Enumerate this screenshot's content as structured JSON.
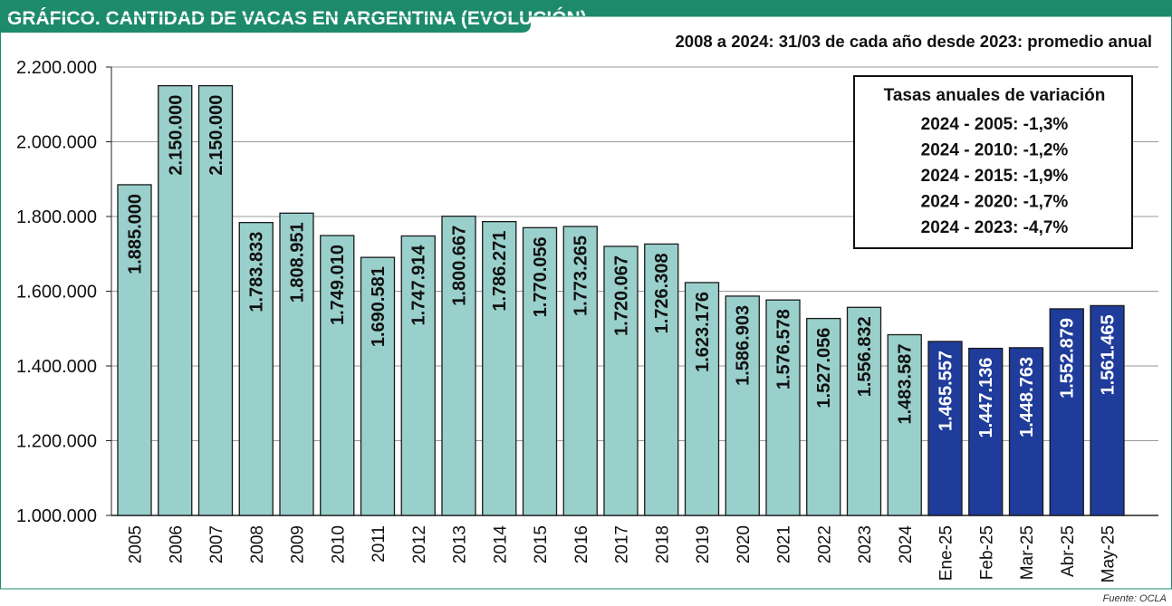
{
  "colors": {
    "header": "#1c8a6b",
    "annual_bar": "#9ad0cc",
    "monthly_bar": "#1f3c9b",
    "grid": "#9a9a9a",
    "border": "#333333"
  },
  "chart_data": {
    "type": "bar",
    "title": "GRÁFICO. CANTIDAD DE VACAS EN ARGENTINA (EVOLUCIÓN)",
    "subtitle": "2008 a 2024: 31/03 de cada año desde 2023: promedio anual",
    "categories": [
      "2005",
      "2006",
      "2007",
      "2008",
      "2009",
      "2010",
      "2011",
      "2012",
      "2013",
      "2014",
      "2015",
      "2016",
      "2017",
      "2018",
      "2019",
      "2020",
      "2021",
      "2022",
      "2023",
      "2024",
      "Ene-25",
      "Feb-25",
      "Mar-25",
      "Abr-25",
      "May-25"
    ],
    "values": [
      1885000,
      2150000,
      2150000,
      1783833,
      1808951,
      1749010,
      1690581,
      1747914,
      1800667,
      1786271,
      1770056,
      1773265,
      1720067,
      1726308,
      1623176,
      1586903,
      1576578,
      1527056,
      1556832,
      1483587,
      1465557,
      1447136,
      1448763,
      1552879,
      1561465
    ],
    "value_labels": [
      "1.885.000",
      "2.150.000",
      "2.150.000",
      "1.783.833",
      "1.808.951",
      "1.749.010",
      "1.690.581",
      "1.747.914",
      "1.800.667",
      "1.786.271",
      "1.770.056",
      "1.773.265",
      "1.720.067",
      "1.726.308",
      "1.623.176",
      "1.586.903",
      "1.576.578",
      "1.527.056",
      "1.556.832",
      "1.483.587",
      "1.465.557",
      "1.447.136",
      "1.448.763",
      "1.552.879",
      "1.561.465"
    ],
    "series_kind": [
      "annual",
      "annual",
      "annual",
      "annual",
      "annual",
      "annual",
      "annual",
      "annual",
      "annual",
      "annual",
      "annual",
      "annual",
      "annual",
      "annual",
      "annual",
      "annual",
      "annual",
      "annual",
      "annual",
      "annual",
      "monthly",
      "monthly",
      "monthly",
      "monthly",
      "monthly"
    ],
    "ylim": [
      1000000,
      2200000
    ],
    "yticks": [
      1000000,
      1200000,
      1400000,
      1600000,
      1800000,
      2000000,
      2200000
    ],
    "ytick_labels": [
      "1.000.000",
      "1.200.000",
      "1.400.000",
      "1.600.000",
      "1.800.000",
      "2.000.000",
      "2.200.000"
    ],
    "xlabel": "",
    "ylabel": "",
    "grid": true,
    "legend_box": {
      "title": "Tasas anuales de variación",
      "lines": [
        "2024 - 2005: -1,3%",
        "2024 - 2010: -1,2%",
        "2024 - 2015: -1,9%",
        "2024 - 2020: -1,7%",
        "2024 - 2023: -4,7%"
      ],
      "placement": "top-right"
    }
  },
  "source": "Fuente: OCLA"
}
